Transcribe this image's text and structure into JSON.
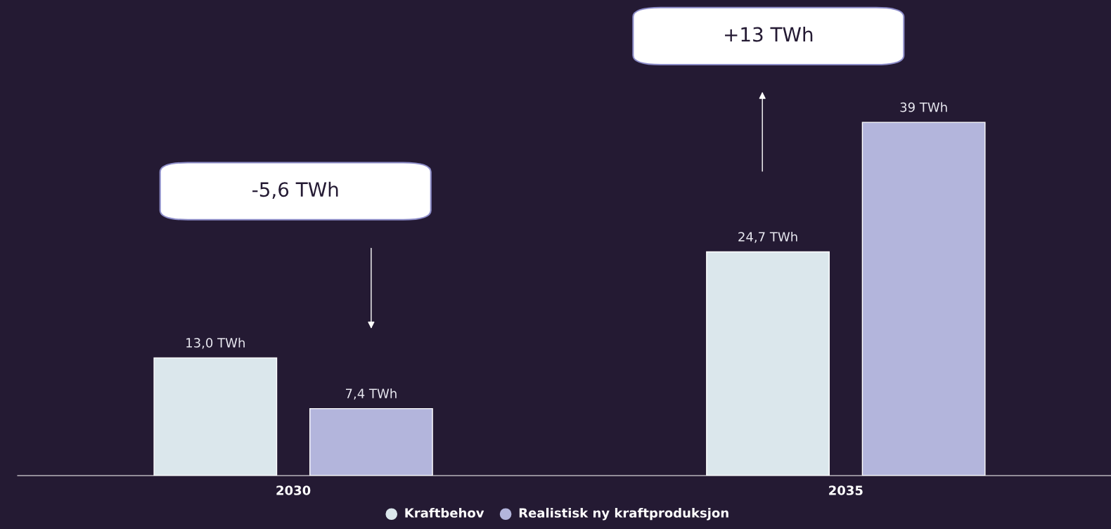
{
  "chart_data": {
    "type": "bar",
    "categories": [
      "2030",
      "2035"
    ],
    "series": [
      {
        "name": "Kraftbehov",
        "color": "#dbe7ec",
        "values": [
          13.0,
          24.7
        ],
        "value_labels": [
          "13,0 TWh",
          "24,7 TWh"
        ]
      },
      {
        "name": "Realistisk ny kraftproduksjon",
        "color": "#b3b5dc",
        "values": [
          7.4,
          39
        ],
        "value_labels": [
          "7,4 TWh",
          "39 TWh"
        ]
      }
    ],
    "ylim": [
      0,
      52.5
    ],
    "tick_labels": "x",
    "grid": false,
    "legend": "bottom",
    "annotations": [
      "-5,6 TWh",
      "+13 TWh"
    ]
  }
}
